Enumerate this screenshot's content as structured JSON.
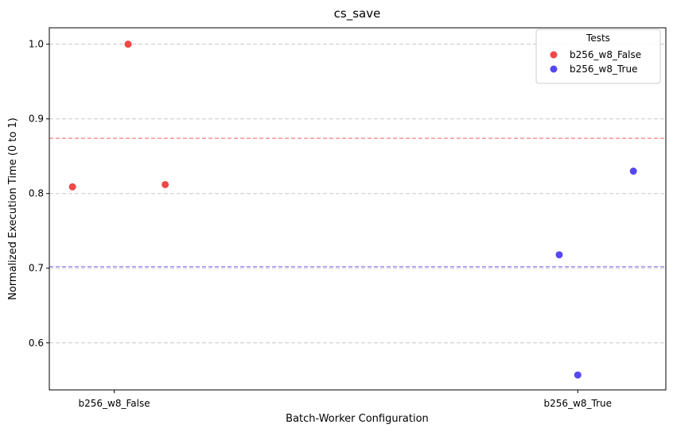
{
  "chart_data": {
    "type": "scatter",
    "title": "cs_save",
    "xlabel": "Batch-Worker Configuration",
    "ylabel": "Normalized Execution Time (0 to 1)",
    "categories": [
      "b256_w8_False",
      "b256_w8_True"
    ],
    "ylim": [
      0.537,
      1.022
    ],
    "yticks": [
      0.6,
      0.7,
      0.8,
      0.9,
      1.0
    ],
    "ytick_labels": [
      "0.6",
      "0.7",
      "0.8",
      "0.9",
      "1.0"
    ],
    "grid": "y-dashed",
    "legend": {
      "title": "Tests",
      "placement": "top-right"
    },
    "series": [
      {
        "name": "b256_w8_False",
        "color": "#ee3333",
        "mean": 0.874,
        "points": [
          {
            "x": -0.09,
            "y": 0.809
          },
          {
            "x": 0.03,
            "y": 1.0
          },
          {
            "x": 0.11,
            "y": 0.812
          }
        ]
      },
      {
        "name": "b256_w8_True",
        "color": "#4433ee",
        "mean": 0.702,
        "points": [
          {
            "x": 0.96,
            "y": 0.718
          },
          {
            "x": 1.0,
            "y": 0.557
          },
          {
            "x": 1.12,
            "y": 0.83
          }
        ]
      }
    ]
  }
}
